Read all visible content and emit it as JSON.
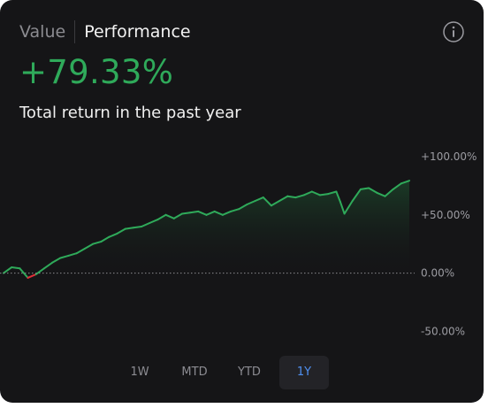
{
  "header": {
    "tabs": [
      {
        "label": "Value",
        "active": false
      },
      {
        "label": "Performance",
        "active": true
      }
    ],
    "info_icon": "info-circle-icon"
  },
  "summary": {
    "return_value": "+79.33%",
    "caption": "Total return in the past year"
  },
  "colors": {
    "positive": "#2faa5a",
    "negative": "#e0303a",
    "card_background": "#151517",
    "selected_range": "#4f8ff0"
  },
  "chart_data": {
    "type": "area",
    "ylabel": "",
    "xlabel": "",
    "y_tick_labels": [
      "+100.00%",
      "+50.00%",
      "0.00%",
      "-50.00%"
    ],
    "y_ticks": [
      100,
      50,
      0,
      -50
    ],
    "ylim": [
      -55,
      100
    ],
    "baseline": 0,
    "grid": false,
    "x": [
      0,
      2,
      4,
      6,
      8,
      10,
      12,
      14,
      16,
      18,
      20,
      22,
      24,
      26,
      28,
      30,
      32,
      34,
      36,
      38,
      40,
      42,
      44,
      46,
      48,
      50,
      52,
      54,
      56,
      58,
      60,
      62,
      64,
      66,
      68,
      70,
      72,
      74,
      76,
      78,
      80,
      82,
      83,
      84,
      86,
      88,
      90,
      92,
      94,
      96,
      98,
      100
    ],
    "series": [
      {
        "values": [
          0,
          5,
          4,
          -4,
          -1,
          4,
          9,
          13,
          15,
          17,
          21,
          25,
          27,
          31,
          34,
          38,
          39,
          40,
          43,
          46,
          50,
          47,
          51,
          52,
          53,
          50,
          53,
          50,
          53,
          55,
          59,
          62,
          65,
          58,
          62,
          66,
          65,
          67,
          70,
          67,
          68,
          70,
          61,
          51,
          62,
          72,
          73,
          69,
          66,
          72,
          77,
          79.33
        ]
      }
    ]
  },
  "range_selector": {
    "options": [
      "1W",
      "MTD",
      "YTD",
      "1Y"
    ],
    "selected": "1Y"
  }
}
